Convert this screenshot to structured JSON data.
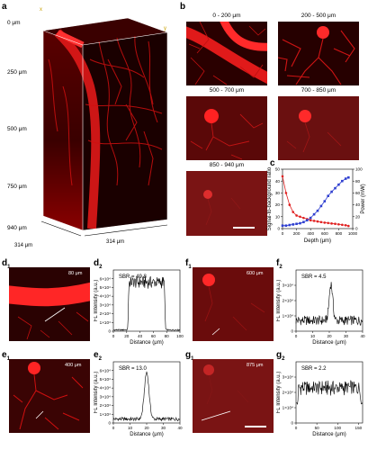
{
  "panels": {
    "a": {
      "label": "a",
      "depth_labels": [
        "0 μm",
        "250 μm",
        "500 μm",
        "750 μm",
        "940 μm"
      ],
      "axis_x": "x",
      "axis_y": "y",
      "axis_z": "z",
      "dim1": "314 μm",
      "dim2": "314 μm"
    },
    "b": {
      "label": "b",
      "tiles": [
        "0 - 200 μm",
        "200 - 500 μm",
        "500 - 700 μm",
        "700 - 850 μm",
        "850 - 940 μm"
      ]
    },
    "c": {
      "label": "c"
    },
    "d1": {
      "label": "d",
      "sub": "1",
      "depth": "80 μm"
    },
    "d2": {
      "label": "d",
      "sub": "2"
    },
    "e1": {
      "label": "e",
      "sub": "1",
      "depth": "400 μm"
    },
    "e2": {
      "label": "e",
      "sub": "2"
    },
    "f1": {
      "label": "f",
      "sub": "1",
      "depth": "600 μm"
    },
    "f2": {
      "label": "f",
      "sub": "2"
    },
    "g1": {
      "label": "g",
      "sub": "1",
      "depth": "875 μm"
    },
    "g2": {
      "label": "g",
      "sub": "2"
    }
  },
  "chart_data": [
    {
      "panel": "c",
      "type": "line",
      "xlabel": "Depth (μm)",
      "ylabel": "Signal-to-background ratio",
      "ylabel_right": "Power (mW)",
      "xlim": [
        0,
        1000
      ],
      "ylim": [
        0,
        50
      ],
      "ylim_right": [
        0,
        100
      ],
      "xticks": [
        "0",
        "200",
        "400",
        "600",
        "800",
        "1000"
      ],
      "yticks": [
        "0",
        "10",
        "20",
        "30",
        "40",
        "50"
      ],
      "yticks_right": [
        "0",
        "20",
        "40",
        "60",
        "80",
        "100"
      ],
      "series": [
        {
          "color": "#e02020",
          "axis": "left",
          "x": [
            0,
            50,
            100,
            150,
            200,
            250,
            300,
            350,
            400,
            450,
            500,
            550,
            600,
            650,
            700,
            750,
            800,
            850,
            900,
            940
          ],
          "values": [
            44,
            30,
            20,
            14,
            11,
            10,
            9,
            8,
            7,
            6.5,
            6,
            5.5,
            5,
            4.7,
            4.3,
            4,
            3.6,
            3.2,
            2.8,
            2.2
          ]
        },
        {
          "color": "#3040d0",
          "axis": "right",
          "x": [
            0,
            50,
            100,
            150,
            200,
            250,
            300,
            350,
            400,
            450,
            500,
            550,
            600,
            650,
            700,
            750,
            800,
            850,
            900,
            940
          ],
          "values": [
            5,
            5,
            6,
            7,
            8,
            9,
            11,
            14,
            18,
            24,
            30,
            38,
            46,
            55,
            62,
            68,
            74,
            80,
            84,
            86
          ]
        }
      ]
    },
    {
      "panel": "d2",
      "type": "line",
      "annotation": "SBR = 49.8",
      "xlabel": "Distance (μm)",
      "ylabel": "FL Intensity (a.u.)",
      "xlim": [
        0,
        100
      ],
      "ylim": [
        0,
        7
      ],
      "xticks": [
        "0",
        "20",
        "40",
        "60",
        "80",
        "100"
      ],
      "yticks": [
        "0",
        "1×10⁴",
        "2×10⁴",
        "3×10⁴",
        "4×10⁴",
        "5×10⁴",
        "6×10⁴"
      ],
      "profile": "plateau",
      "peak": 5.6,
      "base": 0.15,
      "center": 50,
      "width": 55
    },
    {
      "panel": "e2",
      "type": "line",
      "annotation": "SBR = 13.0",
      "xlabel": "Distance (μm)",
      "ylabel": "FL Intensity (a.u.)",
      "xlim": [
        0,
        40
      ],
      "ylim": [
        0,
        7
      ],
      "xticks": [
        "0",
        "10",
        "20",
        "30",
        "40"
      ],
      "yticks": [
        "0",
        "1×10⁴",
        "2×10⁴",
        "3×10⁴",
        "4×10⁴",
        "5×10⁴",
        "6×10⁴"
      ],
      "profile": "peak",
      "peak": 5.8,
      "base": 0.45,
      "center": 20,
      "width": 3.2
    },
    {
      "panel": "f2",
      "type": "line",
      "annotation": "SBR = 4.5",
      "xlabel": "Distance (μm)",
      "ylabel": "FL Intensity (a.u.)",
      "xlim": [
        0,
        40
      ],
      "ylim": [
        0,
        4
      ],
      "xticks": [
        "0",
        "10",
        "20",
        "30",
        "40"
      ],
      "yticks": [
        "0",
        "1×10⁴",
        "2×10⁴",
        "3×10⁴"
      ],
      "profile": "peak",
      "peak": 3.1,
      "base": 0.7,
      "center": 21,
      "width": 2.4
    },
    {
      "panel": "g2",
      "type": "line",
      "annotation": "SBR = 2.2",
      "xlabel": "Distance (μm)",
      "ylabel": "FL Intensity (a.u.)",
      "xlim": [
        0,
        160
      ],
      "ylim": [
        0,
        4
      ],
      "xticks": [
        "0",
        "50",
        "100",
        "150"
      ],
      "yticks": [
        "0",
        "1×10⁴",
        "2×10⁴",
        "3×10⁴"
      ],
      "profile": "plateau",
      "peak": 2.3,
      "base": 1.3,
      "center": 80,
      "width": 150
    }
  ]
}
